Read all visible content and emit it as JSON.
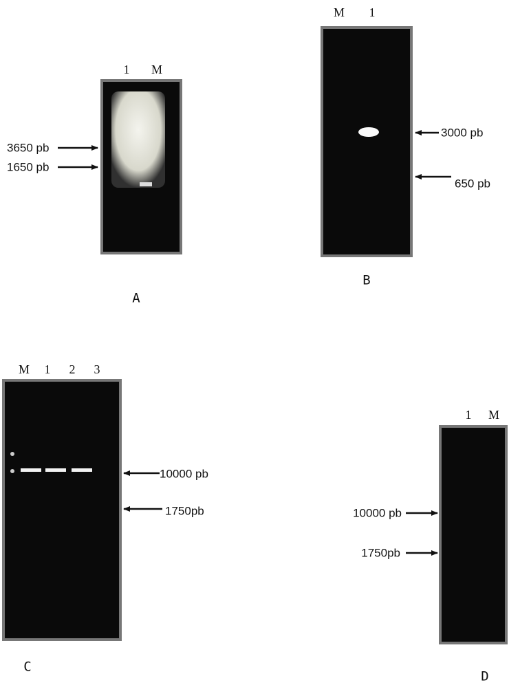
{
  "panels": [
    {
      "letter": "A",
      "lanes": [
        "1",
        "M"
      ],
      "markers": [
        "3650 pb",
        "1650 pb"
      ]
    },
    {
      "letter": "B",
      "lanes": [
        "M",
        "1"
      ],
      "markers": [
        "3000 pb",
        "650 pb"
      ]
    },
    {
      "letter": "C",
      "lanes": [
        "M",
        "1",
        "2",
        "3"
      ],
      "markers": [
        "10000 pb",
        "1750pb"
      ]
    },
    {
      "letter": "D",
      "lanes": [
        "1",
        "M"
      ],
      "markers": [
        "10000 pb",
        "1750pb"
      ]
    }
  ]
}
